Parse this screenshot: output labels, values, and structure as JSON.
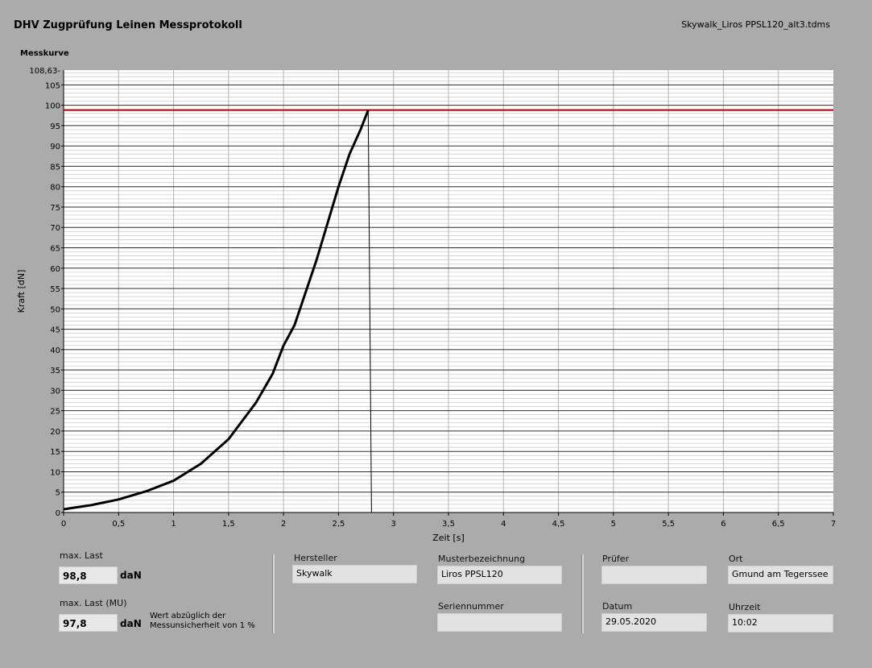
{
  "header": {
    "title": "DHV Zugprüfung Leinen Messprotokoll",
    "file_name": "Skywalk_Liros PPSL120_alt3.tdms"
  },
  "chart_data": {
    "type": "line",
    "title": "Messkurve",
    "xlabel": "Zeit [s]",
    "ylabel": "Kraft [dN]",
    "xlim": [
      0,
      7
    ],
    "ylim": [
      0,
      108.63
    ],
    "x_ticks": [
      "0",
      "0,5",
      "1",
      "1,5",
      "2",
      "2,5",
      "3",
      "3,5",
      "4",
      "4,5",
      "5",
      "5,5",
      "6",
      "6,5",
      "7"
    ],
    "y_ticks": [
      "0",
      "5",
      "10",
      "15",
      "20",
      "25",
      "30",
      "35",
      "40",
      "45",
      "50",
      "55",
      "60",
      "65",
      "70",
      "75",
      "80",
      "85",
      "90",
      "95",
      "100",
      "105"
    ],
    "y_max_label": "108,63-",
    "grid": true,
    "colors": {
      "curve": "#000000",
      "max_line": "#b00000",
      "plot_bg": "#ffffff"
    },
    "series": [
      {
        "x": [
          0,
          0.25,
          0.5,
          0.75,
          1.0,
          1.25,
          1.5,
          1.75,
          1.9,
          2.0,
          2.1,
          2.2,
          2.3,
          2.4,
          2.5,
          2.6,
          2.7,
          2.77,
          2.8
        ],
        "y": [
          0.8,
          1.8,
          3.2,
          5.2,
          7.8,
          12.0,
          18.0,
          27.0,
          34.0,
          41.0,
          46.0,
          54.0,
          62.0,
          71.0,
          80.0,
          88.0,
          94.0,
          98.8,
          0
        ]
      },
      {
        "x": [
          0,
          7
        ],
        "y": [
          98.8,
          98.8
        ]
      }
    ]
  },
  "results": {
    "max_last_label": "max. Last",
    "max_last_value": "98,8",
    "max_last_unit": "daN",
    "max_last_mu_label": "max. Last (MU)",
    "max_last_mu_value": "97,8",
    "max_last_mu_unit": "daN",
    "mu_note": "Wert abzüglich der Messunsicherheit von 1 %"
  },
  "info": {
    "hersteller_label": "Hersteller",
    "hersteller_value": "Skywalk",
    "muster_label": "Musterbezeichnung",
    "muster_value": "Liros PPSL120",
    "serien_label": "Seriennummer",
    "serien_value": "",
    "pruefer_label": "Prüfer",
    "pruefer_value": "",
    "datum_label": "Datum",
    "datum_value": "29.05.2020",
    "ort_label": "Ort",
    "ort_value": "Gmund am Tegerssee",
    "uhrzeit_label": "Uhrzeit",
    "uhrzeit_value": "10:02"
  }
}
